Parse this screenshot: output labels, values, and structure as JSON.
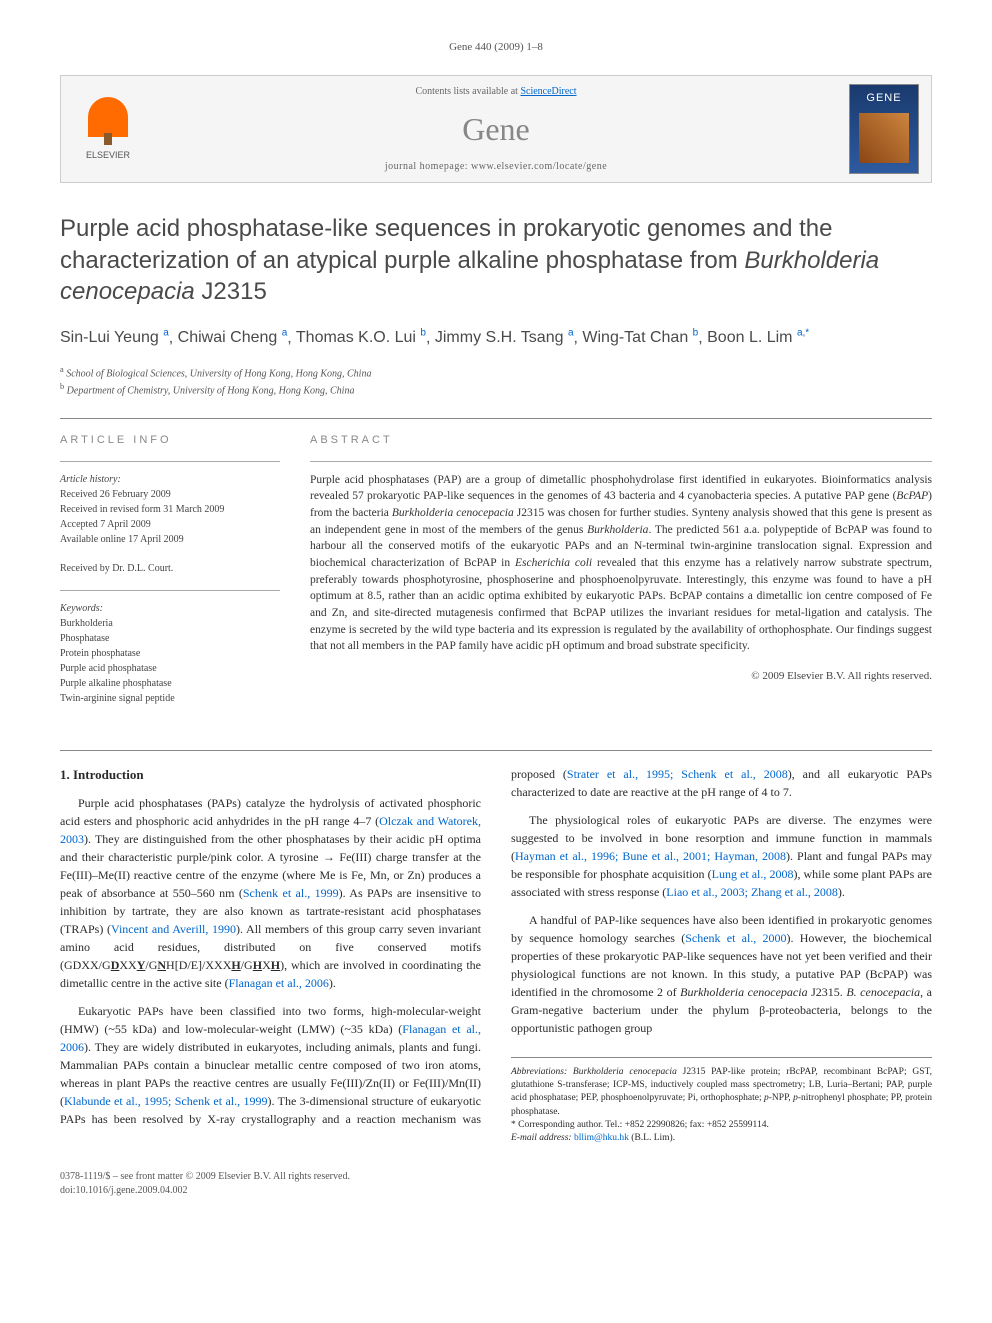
{
  "page_header": "Gene 440 (2009) 1–8",
  "banner": {
    "elsevier_label": "ELSEVIER",
    "contents_line_prefix": "Contents lists available at ",
    "contents_line_link": "ScienceDirect",
    "journal_name": "Gene",
    "homepage_line": "journal homepage: www.elsevier.com/locate/gene",
    "cover_title": "GENE"
  },
  "title_parts": {
    "line1": "Purple acid phosphatase-like sequences in prokaryotic genomes and the characterization of an atypical purple alkaline phosphatase from ",
    "italic": "Burkholderia cenocepacia",
    "suffix": " J2315"
  },
  "authors": [
    {
      "name": "Sin-Lui Yeung",
      "aff": "a"
    },
    {
      "name": "Chiwai Cheng",
      "aff": "a"
    },
    {
      "name": "Thomas K.O. Lui",
      "aff": "b"
    },
    {
      "name": "Jimmy S.H. Tsang",
      "aff": "a"
    },
    {
      "name": "Wing-Tat Chan",
      "aff": "b"
    },
    {
      "name": "Boon L. Lim",
      "aff": "a,*"
    }
  ],
  "affiliations": {
    "a": "School of Biological Sciences, University of Hong Kong, Hong Kong, China",
    "b": "Department of Chemistry, University of Hong Kong, Hong Kong, China"
  },
  "info": {
    "heading": "ARTICLE INFO",
    "history_label": "Article history:",
    "received": "Received 26 February 2009",
    "revised": "Received in revised form 31 March 2009",
    "accepted": "Accepted 7 April 2009",
    "online": "Available online 17 April 2009",
    "received_by": "Received by Dr. D.L. Court.",
    "keywords_label": "Keywords:",
    "keywords": [
      "Burkholderia",
      "Phosphatase",
      "Protein phosphatase",
      "Purple acid phosphatase",
      "Purple alkaline phosphatase",
      "Twin-arginine signal peptide"
    ]
  },
  "abstract": {
    "heading": "ABSTRACT",
    "text_pre": "Purple acid phosphatases (PAP) are a group of dimetallic phosphohydrolase first identified in eukaryotes. Bioinformatics analysis revealed 57 prokaryotic PAP-like sequences in the genomes of 43 bacteria and 4 cyanobacteria species. A putative PAP gene (",
    "text_gene": "BcPAP",
    "text_mid1": ") from the bacteria ",
    "text_species1": "Burkholderia cenocepacia",
    "text_mid2": " J2315 was chosen for further studies. Synteny analysis showed that this gene is present as an independent gene in most of the members of the genus ",
    "text_genus": "Burkholderia",
    "text_mid3": ". The predicted 561 a.a. polypeptide of BcPAP was found to harbour all the conserved motifs of the eukaryotic PAPs and an N-terminal twin-arginine translocation signal. Expression and biochemical characterization of BcPAP in ",
    "text_species2": "Escherichia coli",
    "text_mid4": " revealed that this enzyme has a relatively narrow substrate spectrum, preferably towards phosphotyrosine, phosphoserine and phosphoenolpyruvate. Interestingly, this enzyme was found to have a pH optimum at 8.5, rather than an acidic optima exhibited by eukaryotic PAPs. BcPAP contains a dimetallic ion centre composed of Fe and Zn, and site-directed mutagenesis confirmed that BcPAP utilizes the invariant residues for metal-ligation and catalysis. The enzyme is secreted by the wild type bacteria and its expression is regulated by the availability of orthophosphate. Our findings suggest that not all members in the PAP family have acidic pH optimum and broad substrate specificity.",
    "copyright": "© 2009 Elsevier B.V. All rights reserved."
  },
  "body": {
    "section1_heading": "1. Introduction",
    "p1_a": "Purple acid phosphatases (PAPs) catalyze the hydrolysis of activated phosphoric acid esters and phosphoric acid anhydrides in the pH range 4–7 (",
    "p1_ref1": "Olczak and Watorek, 2003",
    "p1_b": "). They are distinguished from the other phosphatases by their acidic pH optima and their characteristic purple/pink color. A tyrosine → Fe(III) charge transfer at the Fe(III)–Me(II) reactive centre of the enzyme (where Me is Fe, Mn, or Zn) produces a peak of absorbance at 550–560 nm (",
    "p1_ref2": "Schenk et al., 1999",
    "p1_c": "). As PAPs are insensitive to inhibition by tartrate, they are also known as tartrate-resistant acid phosphatases (TRAPs) (",
    "p1_ref3": "Vincent and Averill, 1990",
    "p1_d": "). All members of this group carry seven invariant amino acid residues, distributed on five conserved motifs (G",
    "p1_motif": "DXX/GDXXY/GNH[D/E]/XXXH/GHXH",
    "p1_e": "), which are involved in coordinating the dimetallic centre in the active site (",
    "p1_ref4": "Flanagan et al., 2006",
    "p1_f": ").",
    "p2_a": "Eukaryotic PAPs have been classified into two forms, high-molecular-weight (HMW) (~55 kDa) and low-molecular-weight (LMW) (~35 kDa) (",
    "p2_ref1": "Flanagan et al., 2006",
    "p2_b": "). They are widely distributed in eukaryotes, including animals, plants and fungi. Mammalian PAPs contain a binuclear metallic centre composed of two iron atoms, whereas in plant PAPs the reactive centres are usually Fe(III)/Zn(II) or Fe(III)/Mn(II) (",
    "p2_ref2": "Klabunde et al., 1995; Schenk et al., 1999",
    "p2_c": "). The 3-dimensional structure of eukaryotic PAPs has been resolved by X-ray crystallography and a reaction mechanism was proposed (",
    "p2_ref3": "Strater et al., 1995; Schenk et al., 2008",
    "p2_d": "), and all eukaryotic PAPs characterized to date are reactive at the pH range of 4 to 7.",
    "p3_a": "The physiological roles of eukaryotic PAPs are diverse. The enzymes were suggested to be involved in bone resorption and immune function in mammals (",
    "p3_ref1": "Hayman et al., 1996; Bune et al., 2001; Hayman, 2008",
    "p3_b": "). Plant and fungal PAPs may be responsible for phosphate acquisition (",
    "p3_ref2": "Lung et al., 2008",
    "p3_c": "), while some plant PAPs are associated with stress response (",
    "p3_ref3": "Liao et al., 2003; Zhang et al., 2008",
    "p3_d": ").",
    "p4_a": "A handful of PAP-like sequences have also been identified in prokaryotic genomes by sequence homology searches (",
    "p4_ref1": "Schenk et al., 2000",
    "p4_b": "). However, the biochemical properties of these prokaryotic PAP-like sequences have not yet been verified and their physiological functions are not known. In this study, a putative PAP (BcPAP) was identified in the chromosome 2 of ",
    "p4_species1": "Burkholderia cenocepacia",
    "p4_c": " J2315. ",
    "p4_species2": "B. cenocepacia",
    "p4_d": ", a Gram-negative bacterium under the phylum β-proteobacteria, belongs to the opportunistic pathogen group"
  },
  "footnotes": {
    "abbrev_label": "Abbreviations:",
    "abbrev_text": " BcPAP, Burkholderia cenocepacia J2315 PAP-like protein; rBcPAP, recombinant BcPAP; GST, glutathione S-transferase; ICP-MS, inductively coupled mass spectrometry; LB, Luria–Bertani; PAP, purple acid phosphatase; PEP, phosphoenolpyruvate; Pi, orthophosphate; p-NPP, p-nitrophenyl phosphate; PP, protein phosphatase.",
    "corresponding": "* Corresponding author. Tel.: +852 22990826; fax: +852 25599114.",
    "email_label": "E-mail address:",
    "email": " bllim@hku.hk",
    "email_suffix": " (B.L. Lim)."
  },
  "footer": {
    "line1": "0378-1119/$ – see front matter © 2009 Elsevier B.V. All rights reserved.",
    "line2": "doi:10.1016/j.gene.2009.04.002"
  },
  "colors": {
    "link": "#0066cc",
    "heading_gray": "#878787",
    "text": "#2a2a2a",
    "muted": "#666666",
    "elsevier_orange": "#ff6b00"
  }
}
